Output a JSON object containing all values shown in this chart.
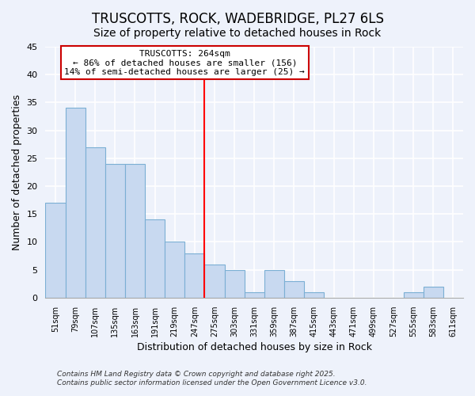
{
  "title": "TRUSCOTTS, ROCK, WADEBRIDGE, PL27 6LS",
  "subtitle": "Size of property relative to detached houses in Rock",
  "xlabel": "Distribution of detached houses by size in Rock",
  "ylabel": "Number of detached properties",
  "categories": [
    "51sqm",
    "79sqm",
    "107sqm",
    "135sqm",
    "163sqm",
    "191sqm",
    "219sqm",
    "247sqm",
    "275sqm",
    "303sqm",
    "331sqm",
    "359sqm",
    "387sqm",
    "415sqm",
    "443sqm",
    "471sqm",
    "499sqm",
    "527sqm",
    "555sqm",
    "583sqm",
    "611sqm"
  ],
  "values": [
    17,
    34,
    27,
    24,
    24,
    14,
    10,
    8,
    6,
    5,
    1,
    5,
    3,
    1,
    0,
    0,
    0,
    0,
    1,
    2,
    0
  ],
  "bar_color": "#c8d9f0",
  "bar_edge_color": "#7bafd4",
  "vline_color": "red",
  "annotation_title": "TRUSCOTTS: 264sqm",
  "annotation_line1": "← 86% of detached houses are smaller (156)",
  "annotation_line2": "14% of semi-detached houses are larger (25) →",
  "annotation_box_color": "white",
  "annotation_box_edge": "#cc0000",
  "ylim": [
    0,
    45
  ],
  "footnote1": "Contains HM Land Registry data © Crown copyright and database right 2025.",
  "footnote2": "Contains public sector information licensed under the Open Government Licence v3.0.",
  "background_color": "#eef2fb"
}
